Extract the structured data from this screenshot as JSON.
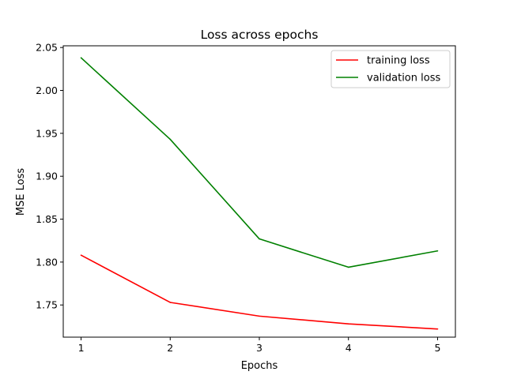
{
  "chart_data": {
    "type": "line",
    "title": "Loss across epochs",
    "xlabel": "Epochs",
    "ylabel": "MSE Loss",
    "x": [
      1,
      2,
      3,
      4,
      5
    ],
    "xlim": [
      0.8,
      5.2
    ],
    "ylim": [
      1.7125,
      2.052
    ],
    "xticks": [
      1,
      2,
      3,
      4,
      5
    ],
    "yticks": [
      1.75,
      1.8,
      1.85,
      1.9,
      1.95,
      2.0,
      2.05
    ],
    "ytick_labels": [
      "1.75",
      "1.80",
      "1.85",
      "1.90",
      "1.95",
      "2.00",
      "2.05"
    ],
    "grid": false,
    "legend_position": "top-right",
    "series": [
      {
        "name": "training loss",
        "color": "#ff0000",
        "values": [
          1.808,
          1.753,
          1.737,
          1.728,
          1.722
        ]
      },
      {
        "name": "validation loss",
        "color": "#008000",
        "values": [
          2.038,
          1.943,
          1.827,
          1.794,
          1.813
        ]
      }
    ]
  }
}
